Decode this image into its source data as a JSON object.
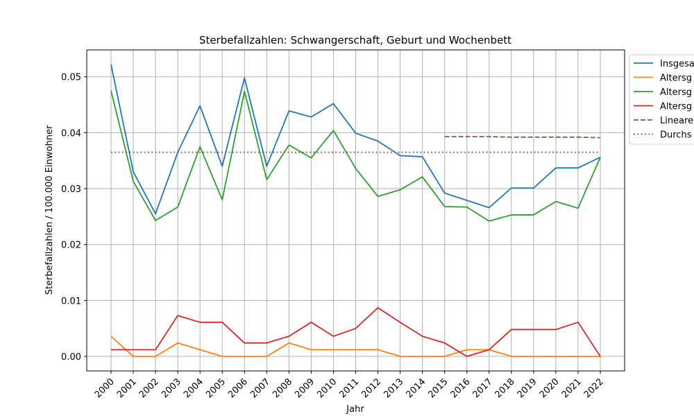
{
  "chart_data": {
    "type": "line",
    "title": "Sterbefallzahlen: Schwangerschaft, Geburt und Wochenbett",
    "xlabel": "Jahr",
    "ylabel": "Sterbefallzahlen / 100.000 Einwohner",
    "categories": [
      "2000",
      "2001",
      "2002",
      "2003",
      "2004",
      "2005",
      "2006",
      "2007",
      "2008",
      "2009",
      "2010",
      "2011",
      "2012",
      "2013",
      "2014",
      "2015",
      "2016",
      "2017",
      "2018",
      "2019",
      "2020",
      "2021",
      "2022"
    ],
    "y_ticks": [
      "0.00",
      "0.01",
      "0.02",
      "0.03",
      "0.04",
      "0.05"
    ],
    "ylim": [
      -0.0026,
      0.0548
    ],
    "grid": true,
    "legend_position": "outside-top-right",
    "series": [
      {
        "name": "Insgesa",
        "color": "#1f77b4",
        "style": "solid",
        "values": [
          0.0522,
          0.033,
          0.0255,
          0.0365,
          0.0448,
          0.034,
          0.0498,
          0.034,
          0.0439,
          0.0428,
          0.0452,
          0.0399,
          0.0385,
          0.0359,
          0.0357,
          0.0292,
          0.0279,
          0.0266,
          0.0301,
          0.0301,
          0.0337,
          0.0337,
          0.0356
        ]
      },
      {
        "name": "Altersg",
        "color": "#ff7f0e",
        "style": "solid",
        "values": [
          0.0036,
          0.0,
          0.0,
          0.0024,
          0.0012,
          0.0,
          0.0,
          0.0,
          0.0024,
          0.0012,
          0.0012,
          0.0012,
          0.0012,
          0.0,
          0.0,
          0.0,
          0.0012,
          0.0012,
          0.0,
          0.0,
          0.0,
          0.0,
          0.0
        ]
      },
      {
        "name": "Altersg",
        "color": "#2ca02c",
        "style": "solid",
        "values": [
          0.0475,
          0.0313,
          0.0243,
          0.0267,
          0.0375,
          0.028,
          0.0474,
          0.0316,
          0.0378,
          0.0355,
          0.0404,
          0.0336,
          0.0286,
          0.0298,
          0.0321,
          0.0268,
          0.0267,
          0.0242,
          0.0253,
          0.0253,
          0.0277,
          0.0265,
          0.0356
        ]
      },
      {
        "name": "Altersg",
        "color": "#d62728",
        "style": "solid",
        "values": [
          0.0012,
          0.0012,
          0.0012,
          0.0073,
          0.0061,
          0.0061,
          0.0024,
          0.0024,
          0.0036,
          0.0061,
          0.0036,
          0.005,
          0.0087,
          0.0061,
          0.0036,
          0.0024,
          0.0,
          0.0012,
          0.0048,
          0.0048,
          0.0048,
          0.0061,
          0.0
        ]
      },
      {
        "name": "Lineare",
        "color": "#8c564b",
        "style": "dashed",
        "values": [
          null,
          null,
          null,
          null,
          null,
          null,
          null,
          null,
          null,
          null,
          null,
          null,
          null,
          null,
          null,
          0.0393,
          0.0393,
          0.0393,
          0.0392,
          0.0392,
          0.0392,
          0.0392,
          0.0391
        ]
      },
      {
        "name": "Durchs",
        "color": "#8c564b",
        "style": "dotted",
        "values": [
          0.0365,
          0.0365,
          0.0365,
          0.0365,
          0.0365,
          0.0365,
          0.0365,
          0.0365,
          0.0365,
          0.0365,
          0.0365,
          0.0365,
          0.0365,
          0.0365,
          0.0365,
          0.0365,
          0.0365,
          0.0365,
          0.0365,
          0.0365,
          0.0365,
          0.0365,
          0.0365
        ]
      }
    ]
  }
}
